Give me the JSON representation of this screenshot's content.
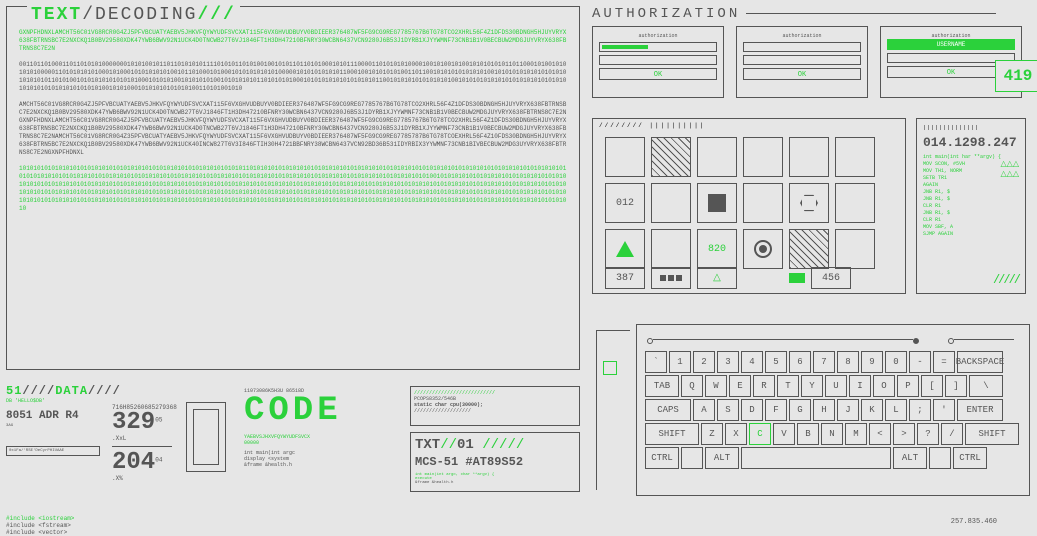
{
  "decode": {
    "title_a": "TEXT",
    "title_b": "DECODING",
    "green_block": "GXNPFHDNXLAMCHT56C01VG8RCR0G4ZJ5PFVBCUATYAEBV5JHKVFQYWYUDFSVCXAT115F6VXGHVUDBUYV0BDIEER376487WF5FG9CG9REG7785767B6TG78TCO2XHRL56F4Z1DFDS30BDNGH5HJUYVRYX638FBTRNSBC7E2NXCKQ1B0BV29580XDK47YWB6BWV92N1UCK4D0TNCWB27T6VJ1846FT1H3DH47210BFNRY30WCBN6437VCN9280J6B53J1DYRB1XJYYWMNF73CNB1B1V0BECBUW2MDGJUYVRYX638FBTRNS8C7E2N",
    "binary_block": "00110110100011011010101000000010101001011011010101011110101011010100100101011011010100010101110000110101010100001001010010100101010101011011000101001010101010000011010101010100010100010101010101001011010001010001010101010101000001010101010101100010010101010100110110010101010101010100101010101010101010101010101011010100101010101010101010001010101001010101010010101010101101010101000101010101010101010101100101010101010101010010101010101010101010101010101010101010101010101010101001010100010101010101010100110101001010",
    "mixed_block": "AMCHT56C01VG8RCR0G4ZJ5PFVBCUATYAEBV5JHKVFQYWYUDFSVCXAT115F6VXGHVUDBUYV0BDIEER376487WF5FG9CG9REG7785767B6TG78TCO2XHRL56F4Z1DFDS30BDNGH5HJUYVRYX638FBTRNSBC7E2NXCKQ1B0BV29580XDK47YWB6BWV92N1UCK4D0TNCWB27T6VJ1846FT1H3DH47210BFNRY30WCBN6437VCN9280J6B53J1DYRB1XJYYWMNF73CNB1B1V0BECBUW2MDGJUYVRYX638FBTRNS8C7E2NGXNPFHDNXLAMCHT56C01VG8RCR0G4ZJ5PFVBCUATYAEBV5JHKVFQYWYUDFSVCXAT115F6VXGHVUDBUYV0BDIEER376487WF5FG9CG9REG7785767B6TG78TCO2XHRL56F4Z1DFDS30BDNGH5HJUYVRYX638FBTRNSBC7E2NXCKQ1B0BV29580XDK47YWB6BWV92N1UCK4D0TNCWB27T6VJ1846FT1H3DH47210BFNRY30WCBN6437VCN9280J6B53J1DYRB1XJYYWMNF73CNB1B1V0BECBUW2MDGJUYVRYX638FBTRNS8C7E2NAMCHT56C01VG8RCR0G4Z35PFVBCUATYAEBV5JHKVFQYWYUDFSVCXAT115F6VXGHVUDBUYV0BDIEER376487WF5FG9CG9REG7785787B6TG78TCOEXHRL56F4Z10FDS30BDNGH5HJUYVRYX638FBTRN5BC7E2NXCKQ1B0BV29580XDK47YWB6BWV92N1UCK40INCW827T6V3I846FTIH30H4721BBFNRY38WCBN6437VCN92BD36B531IDYRBIX3YYWMNF73CNB1BIVBECBUW2MDG3UYVRYX638FBTRNS8C7E2NGXNPFHDNXL",
    "bottom_binary": "101010101010101010101010101010101010101010101010101010101010101101010101010101010101010101010101010101010101010101010101010101010101010101010101010101010101010101010101010101010101010101010101010101010101010101010101010101010101010101010101010101010101010101010101010010101010101010101010101010101010101010101010101010101010101010101010101010101010101010101010101010101010101010101010101010101010101010101010101010101010101010101010101010101010101010101010101010101010101010101010101010101010101010101010101010101010101010101010101010101010101010101010101010101010101010101010101010101010101010101010101010101010101010101010101010101010101010101010101010101010101010101010101010101010101010101010101010101010101010101010101010101010101010101010101010101010101010"
  },
  "data51": {
    "title": "51",
    "title2": "DATA",
    "hash": "////",
    "sub": "DB 'HELLO$DB'",
    "main": "8051 ADR R4",
    "tiny": "3AG",
    "box": "0x1Fa/'RSE'DeCyrPHIUAAE"
  },
  "nums": {
    "top_tiny": "716H85260685279368",
    "a": "329",
    "a_sup": "05",
    "a_sub": ".XxL",
    "b": "204",
    "b_sup": "04",
    "b_sub": ".X%"
  },
  "code": {
    "tiny": "11073086K5H3U 86518D",
    "tiny2": "3P753G11",
    "title": "CODE",
    "green": "YAEBVSJHXVFQYWYUDFSVCX",
    "green2": "00000",
    "grey": "int main(int argc",
    "grey2": "display <system",
    "grey3": "&frame &health.h"
  },
  "txt": {
    "top_bars": "///////////////////////////",
    "top_line1": "PCOPS8352/546B",
    "top_line2": "static char cpu(30000);",
    "top_line3": "///////////////////",
    "title_a": "TXT",
    "title_b": "//",
    "title_c": "01",
    "title_bars": "/////",
    "main": "MCS-51 #AT89S52",
    "tiny1": "int main(int argc, char **argv) {",
    "tiny2": "execute",
    "tiny3": "&frame &health.h"
  },
  "auth": {
    "title": "AUTHORIZATION",
    "label": "authorization",
    "ok": "OK",
    "username": "USERNAME"
  },
  "grid": {
    "bars": "////////",
    "sq": "||||||||||",
    "n012": "012",
    "n820": "820",
    "n387": "387",
    "n456": "456",
    "include1": "#include <iostream>",
    "include2": "#include <fstream>",
    "include3": "#include <vector>",
    "ip": "257.835.460"
  },
  "ip": {
    "bars": "||||||||||||||",
    "val": "014.1298.247",
    "code": "int main(int har **argv) {\nMOV SCON, #5VH\nMOV TH1, NORM\nSETB TR1\nAGAIN\nJNB R1, $\nJNB R1, $\nCLR R1\nJNB R1, $\nCLR R1\nMOV SBF, A\nSJMP AGAIN",
    "badge": "419",
    "chev": "/////"
  },
  "keyboard": {
    "rows": [
      [
        {
          "l": "`",
          "w": "w1"
        },
        {
          "l": "1",
          "w": "w1"
        },
        {
          "l": "2",
          "w": "w1"
        },
        {
          "l": "3",
          "w": "w1"
        },
        {
          "l": "4",
          "w": "w1"
        },
        {
          "l": "5",
          "w": "w1"
        },
        {
          "l": "6",
          "w": "w1"
        },
        {
          "l": "7",
          "w": "w1"
        },
        {
          "l": "8",
          "w": "w1"
        },
        {
          "l": "9",
          "w": "w1"
        },
        {
          "l": "0",
          "w": "w1"
        },
        {
          "l": "-",
          "w": "w1"
        },
        {
          "l": "=",
          "w": "w1"
        },
        {
          "l": "BACKSPACE",
          "w": "w2"
        }
      ],
      [
        {
          "l": "TAB",
          "w": "w15"
        },
        {
          "l": "Q",
          "w": "w1"
        },
        {
          "l": "W",
          "w": "w1"
        },
        {
          "l": "E",
          "w": "w1"
        },
        {
          "l": "R",
          "w": "w1"
        },
        {
          "l": "T",
          "w": "w1"
        },
        {
          "l": "Y",
          "w": "w1"
        },
        {
          "l": "U",
          "w": "w1"
        },
        {
          "l": "I",
          "w": "w1"
        },
        {
          "l": "O",
          "w": "w1"
        },
        {
          "l": "P",
          "w": "w1"
        },
        {
          "l": "[",
          "w": "w1"
        },
        {
          "l": "]",
          "w": "w1"
        },
        {
          "l": "\\",
          "w": "w15"
        }
      ],
      [
        {
          "l": "CAPS",
          "w": "w2"
        },
        {
          "l": "A",
          "w": "w1"
        },
        {
          "l": "S",
          "w": "w1"
        },
        {
          "l": "D",
          "w": "w1"
        },
        {
          "l": "F",
          "w": "w1"
        },
        {
          "l": "G",
          "w": "w1"
        },
        {
          "l": "H",
          "w": "w1"
        },
        {
          "l": "J",
          "w": "w1"
        },
        {
          "l": "K",
          "w": "w1"
        },
        {
          "l": "L",
          "w": "w1"
        },
        {
          "l": ";",
          "w": "w1"
        },
        {
          "l": "'",
          "w": "w1"
        },
        {
          "l": "ENTER",
          "w": "w2"
        }
      ],
      [
        {
          "l": "SHIFT",
          "w": "w25"
        },
        {
          "l": "Z",
          "w": "w1"
        },
        {
          "l": "X",
          "w": "w1"
        },
        {
          "l": "C",
          "w": "w1",
          "g": true
        },
        {
          "l": "V",
          "w": "w1"
        },
        {
          "l": "B",
          "w": "w1"
        },
        {
          "l": "N",
          "w": "w1"
        },
        {
          "l": "M",
          "w": "w1"
        },
        {
          "l": "<",
          "w": "w1"
        },
        {
          "l": ">",
          "w": "w1"
        },
        {
          "l": "?",
          "w": "w1"
        },
        {
          "l": "/",
          "w": "w1"
        },
        {
          "l": "SHIFT",
          "w": "w25"
        }
      ],
      [
        {
          "l": "CTRL",
          "w": "w15"
        },
        {
          "l": "",
          "w": "w1"
        },
        {
          "l": "ALT",
          "w": "w15"
        },
        {
          "l": "",
          "w": "w6"
        },
        {
          "l": "ALT",
          "w": "w15"
        },
        {
          "l": "",
          "w": "w1"
        },
        {
          "l": "CTRL",
          "w": "w15"
        }
      ]
    ]
  }
}
